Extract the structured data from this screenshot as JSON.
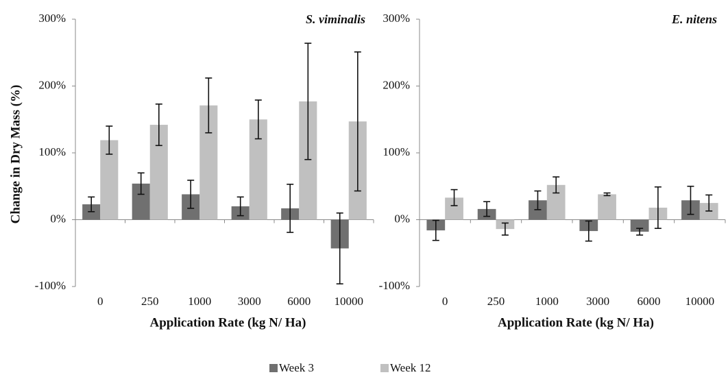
{
  "chart_data": [
    {
      "type": "bar",
      "title": "S. viminalis",
      "y_label": "Change in Dry Mass (%)",
      "x_label": "Application Rate (kg N/ Ha)",
      "categories": [
        "0",
        "250",
        "1000",
        "3000",
        "6000",
        "10000"
      ],
      "series": [
        {
          "name": "Week 3",
          "color": "#707070",
          "values": [
            23,
            54,
            38,
            20,
            17,
            -43
          ],
          "errors": [
            11,
            16,
            21,
            14,
            36,
            53
          ]
        },
        {
          "name": "Week 12",
          "color": "#c0c0c0",
          "values": [
            119,
            142,
            171,
            150,
            177,
            147
          ],
          "errors": [
            21,
            31,
            41,
            29,
            87,
            104
          ]
        }
      ],
      "ylim": [
        -100,
        300
      ],
      "yticks": [
        {
          "value": -100,
          "label": "-100%"
        },
        {
          "value": 0,
          "label": "0%"
        },
        {
          "value": 100,
          "label": "100%"
        },
        {
          "value": 200,
          "label": "200%"
        },
        {
          "value": 300,
          "label": "300%"
        }
      ]
    },
    {
      "type": "bar",
      "title": "E. nitens",
      "x_label": "Application Rate (kg N/ Ha)",
      "categories": [
        "0",
        "250",
        "1000",
        "3000",
        "6000",
        "10000"
      ],
      "series": [
        {
          "color": "#707070",
          "values": [
            -16,
            16,
            29,
            -17,
            -18,
            29
          ],
          "errors": [
            15,
            11,
            14,
            15,
            5,
            21
          ]
        },
        {
          "color": "#c0c0c0",
          "values": [
            33,
            -14,
            52,
            38,
            18,
            25
          ],
          "errors": [
            12,
            9,
            12,
            2,
            31,
            12
          ]
        }
      ],
      "ylim": [
        -100,
        300
      ],
      "yticks": [
        {
          "value": -100,
          "label": "-100%"
        },
        {
          "value": 0,
          "label": "0%"
        },
        {
          "value": 100,
          "label": "100%"
        },
        {
          "value": 200,
          "label": "200%"
        },
        {
          "value": 300,
          "label": "300%"
        }
      ]
    }
  ]
}
